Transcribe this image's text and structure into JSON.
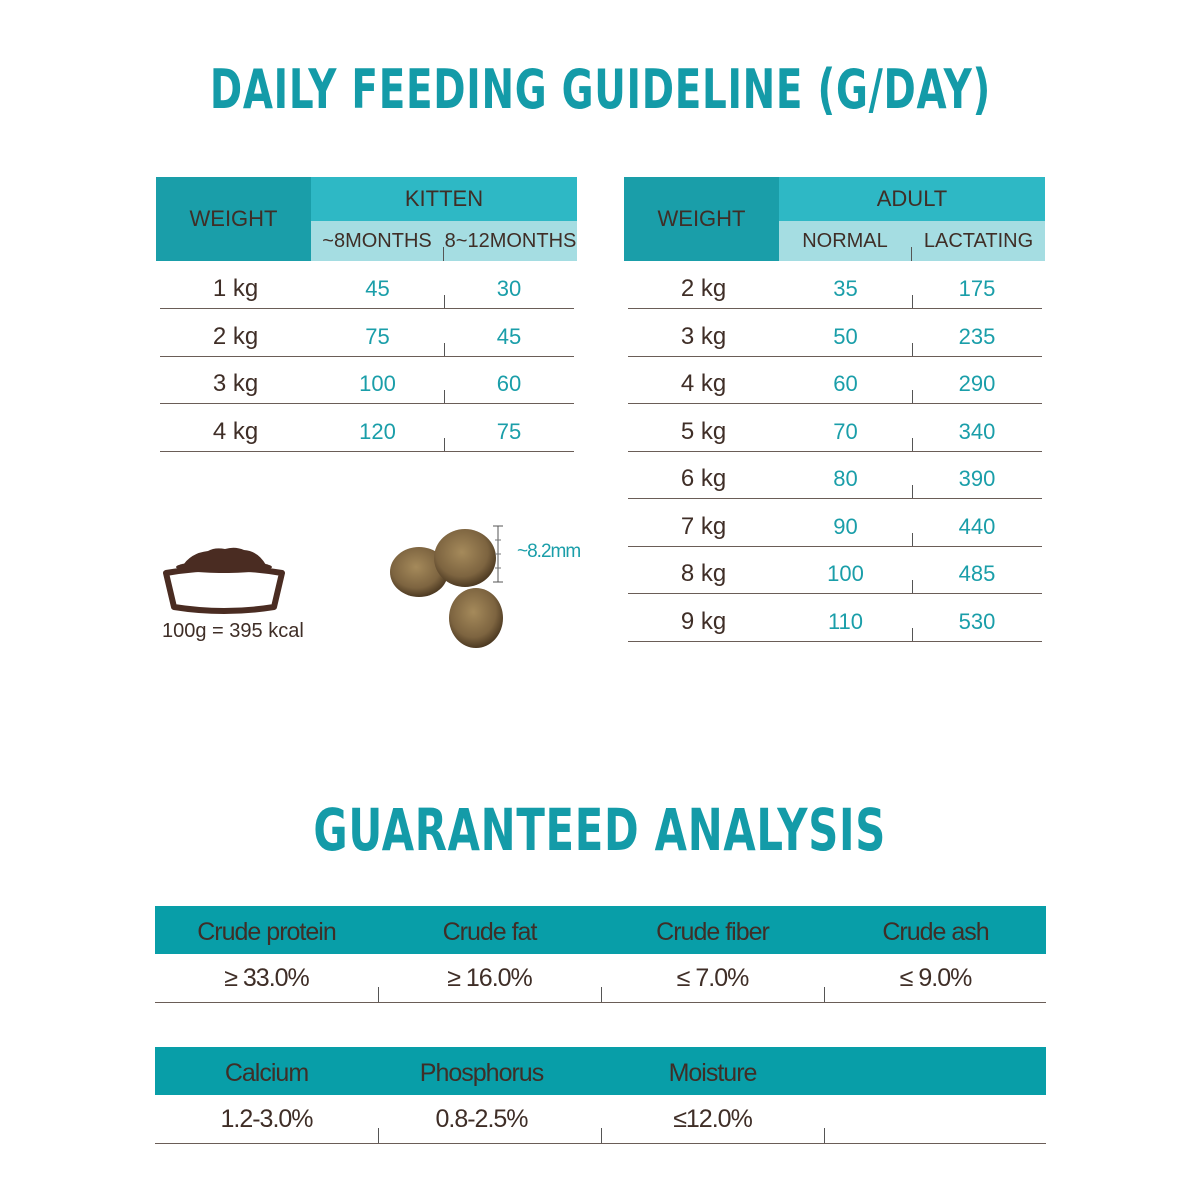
{
  "feeding_title": "DAILY FEEDING GUIDELINE (G/DAY)",
  "kitten": {
    "weight_header": "WEIGHT",
    "group_header": "KITTEN",
    "sub_headers": [
      "~8MONTHS",
      "8~12MONTHS"
    ],
    "rows": [
      {
        "weight": "1 kg",
        "a": "45",
        "b": "30"
      },
      {
        "weight": "2 kg",
        "a": "75",
        "b": "45"
      },
      {
        "weight": "3 kg",
        "a": "100",
        "b": "60"
      },
      {
        "weight": "4 kg",
        "a": "120",
        "b": "75"
      }
    ]
  },
  "adult": {
    "weight_header": "WEIGHT",
    "group_header": "ADULT",
    "sub_headers": [
      "NORMAL",
      "LACTATING"
    ],
    "rows": [
      {
        "weight": "2 kg",
        "a": "35",
        "b": "175"
      },
      {
        "weight": "3 kg",
        "a": "50",
        "b": "235"
      },
      {
        "weight": "4 kg",
        "a": "60",
        "b": "290"
      },
      {
        "weight": "5 kg",
        "a": "70",
        "b": "340"
      },
      {
        "weight": "6 kg",
        "a": "80",
        "b": "390"
      },
      {
        "weight": "7 kg",
        "a": "90",
        "b": "440"
      },
      {
        "weight": "8 kg",
        "a": "100",
        "b": "485"
      },
      {
        "weight": "9 kg",
        "a": "110",
        "b": "530"
      }
    ]
  },
  "calories": "100g = 395 kcal",
  "kibble_size": "~8.2mm",
  "analysis_title": "GUARANTEED ANALYSIS",
  "analysis_1": {
    "headers": [
      "Crude protein",
      "Crude fat",
      "Crude fiber",
      "Crude ash"
    ],
    "values": [
      "≥ 33.0%",
      "≥ 16.0%",
      "≤ 7.0%",
      "≤ 9.0%"
    ]
  },
  "analysis_2": {
    "headers": [
      "Calcium",
      "Phosphorus",
      "Moisture",
      ""
    ],
    "values": [
      "1.2-3.0%",
      "0.8-2.5%",
      "≤12.0%",
      ""
    ]
  },
  "colors": {
    "teal": "#149ba8",
    "brown": "#3f2e27",
    "light_teal": "#a5dde2"
  }
}
